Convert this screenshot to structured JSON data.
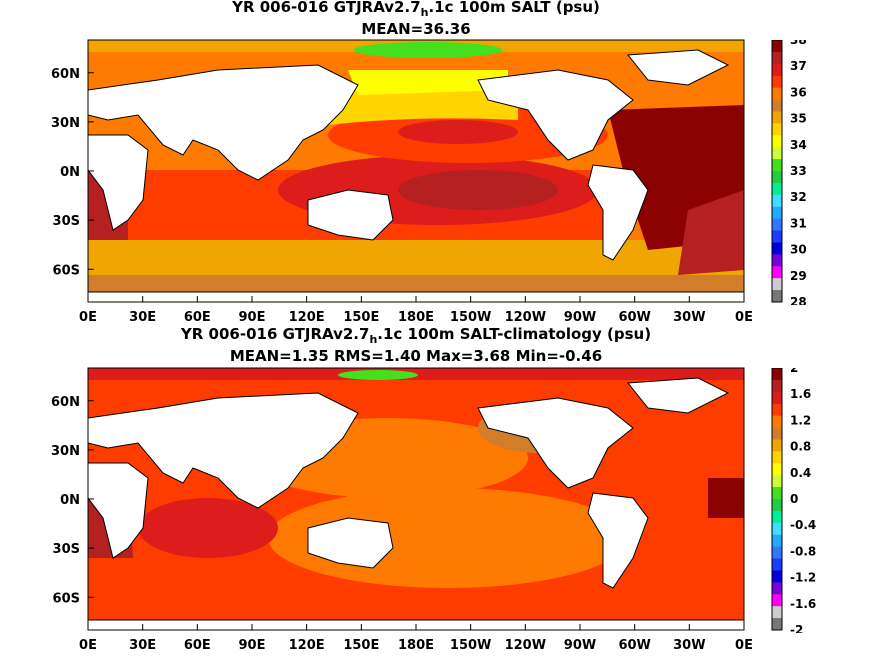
{
  "top": {
    "title_pre": "YR 006-016 GTJRAv2.7",
    "title_sub": "h",
    "title_post": ".1c 100m SALT (psu)",
    "stats": "MEAN=36.36",
    "colorbar": {
      "ticks": [
        "38",
        "37",
        "36",
        "35",
        "34",
        "33",
        "32",
        "31",
        "30",
        "29",
        "28"
      ],
      "colors": [
        "#8b0000",
        "#b52020",
        "#dd1c1c",
        "#ff3c00",
        "#ff7a00",
        "#d27d2a",
        "#f0a500",
        "#ffd400",
        "#ffff00",
        "#ccff33",
        "#44e020",
        "#22cc44",
        "#00ee99",
        "#44ddff",
        "#22aaff",
        "#3377ff",
        "#1c3cff",
        "#0000dd",
        "#7a00dd",
        "#ff00ff",
        "#cccccc",
        "#777777"
      ]
    }
  },
  "bottom": {
    "title_pre": "YR 006-016 GTJRAv2.7",
    "title_sub": "h",
    "title_post": ".1c 100m SALT-climatology (psu)",
    "stats": "MEAN=1.35   RMS=1.40   Max=3.68   Min=-0.46",
    "colorbar": {
      "ticks": [
        "2",
        "1.6",
        "1.2",
        "0.8",
        "0.4",
        "0",
        "-0.4",
        "-0.8",
        "-1.2",
        "-1.6",
        "-2"
      ],
      "colors": [
        "#8b0000",
        "#b52020",
        "#dd1c1c",
        "#ff3c00",
        "#ff7a00",
        "#d27d2a",
        "#f0a500",
        "#ffd400",
        "#ffff00",
        "#ccff33",
        "#44e020",
        "#22cc44",
        "#00ee99",
        "#44ddff",
        "#22aaff",
        "#3377ff",
        "#1c3cff",
        "#0000dd",
        "#7a00dd",
        "#ff00ff",
        "#cccccc",
        "#777777"
      ]
    }
  },
  "axes": {
    "lon_labels": [
      "0E",
      "30E",
      "60E",
      "90E",
      "120E",
      "150E",
      "180E",
      "150W",
      "120W",
      "90W",
      "60W",
      "30W",
      "0E"
    ],
    "lat_labels": [
      "60N",
      "30N",
      "0N",
      "30S",
      "60S"
    ]
  }
}
